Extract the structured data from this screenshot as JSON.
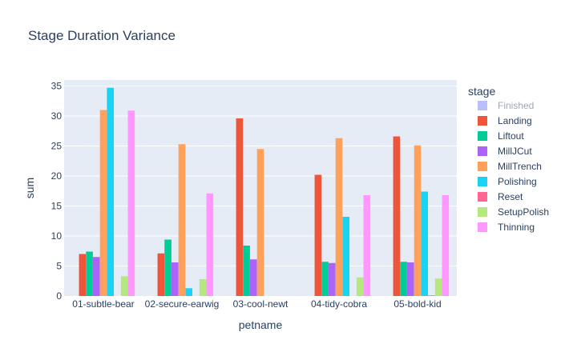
{
  "chart_data": {
    "type": "bar",
    "title": "Stage Duration Variance",
    "xlabel": "petname",
    "ylabel": "sum",
    "ylim": [
      0,
      36
    ],
    "yticks": [
      0,
      5,
      10,
      15,
      20,
      25,
      30,
      35
    ],
    "grid": true,
    "legend_title": "stage",
    "legend_placement": "right",
    "categories": [
      "01-subtle-bear",
      "02-secure-earwig",
      "03-cool-newt",
      "04-tidy-cobra",
      "05-bold-kid"
    ],
    "series": [
      {
        "name": "Finished",
        "color": "#636efa",
        "visible": false,
        "values": [
          0,
          0,
          0,
          0,
          0
        ]
      },
      {
        "name": "Landing",
        "color": "#ef553b",
        "visible": true,
        "values": [
          7.0,
          7.1,
          29.6,
          20.2,
          26.6
        ]
      },
      {
        "name": "Liftout",
        "color": "#00cc96",
        "visible": true,
        "values": [
          7.4,
          9.4,
          8.4,
          5.7,
          5.7
        ]
      },
      {
        "name": "MillJCut",
        "color": "#ab63fa",
        "visible": true,
        "values": [
          6.5,
          5.6,
          6.1,
          5.5,
          5.6
        ]
      },
      {
        "name": "MillTrench",
        "color": "#ffa15a",
        "visible": true,
        "values": [
          31.0,
          25.3,
          24.5,
          26.3,
          25.1
        ]
      },
      {
        "name": "Polishing",
        "color": "#19d3f3",
        "visible": true,
        "values": [
          34.7,
          1.3,
          null,
          13.2,
          17.4
        ]
      },
      {
        "name": "Reset",
        "color": "#ff6692",
        "visible": true,
        "values": [
          null,
          null,
          null,
          null,
          0.1
        ]
      },
      {
        "name": "SetupPolish",
        "color": "#b6e880",
        "visible": true,
        "values": [
          3.3,
          2.8,
          null,
          3.1,
          2.9
        ]
      },
      {
        "name": "Thinning",
        "color": "#ff97ff",
        "visible": true,
        "values": [
          30.9,
          17.1,
          null,
          16.8,
          16.8
        ]
      }
    ]
  }
}
